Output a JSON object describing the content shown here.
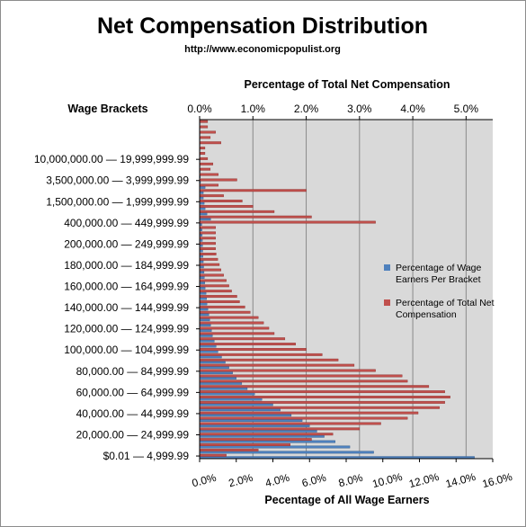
{
  "chart_data": {
    "type": "bar",
    "orientation": "horizontal",
    "title": "Net Compensation Distribution",
    "subtitle": "http://www.economicpopulist.org",
    "ylabel": "Wage Brackets",
    "x_top_label": "Percentage of Total Net Compensation",
    "x_bottom_label": "Pecentage of All Wage Earners",
    "x_top_ticks": [
      "0.0%",
      "1.0%",
      "2.0%",
      "3.0%",
      "4.0%",
      "5.0%"
    ],
    "x_top_lim": [
      0,
      5.5
    ],
    "x_bottom_ticks": [
      "0.0%",
      "2.0%",
      "4.0%",
      "6.0%",
      "8.0%",
      "10.0%",
      "12.0%",
      "14.0%",
      "16.0%"
    ],
    "x_bottom_lim": [
      0,
      16
    ],
    "grid": true,
    "legend_position": "right",
    "category_ticks": [
      "$0.01 — 4,999.99",
      "20,000.00 — 24,999.99",
      "40,000.00 — 44,999.99",
      "60,000.00 — 64,999.99",
      "80,000.00 — 84,999.99",
      "100,000.00 — 104,999.99",
      "120,000.00 — 124,999.99",
      "140,000.00 — 144,999.99",
      "160,000.00 — 164,999.99",
      "180,000.00 — 184,999.99",
      "200,000.00 — 249,999.99",
      "400,000.00 — 449,999.99",
      "1,500,000.00 — 1,999,999.99",
      "3,500,000.00 — 3,999,999.99",
      "10,000,000.00 — 19,999,999.99"
    ],
    "series": [
      {
        "name": "Percentage of Wage Earners Per Bracket",
        "color": "#4f81bd",
        "axis": "bottom",
        "values": [
          15.0,
          9.5,
          8.2,
          7.4,
          6.8,
          6.4,
          6.0,
          5.6,
          5.0,
          4.4,
          4.0,
          3.4,
          3.0,
          2.6,
          2.3,
          2.0,
          1.8,
          1.6,
          1.4,
          1.2,
          1.0,
          0.9,
          0.8,
          0.7,
          0.65,
          0.6,
          0.55,
          0.5,
          0.45,
          0.4,
          0.38,
          0.35,
          0.3,
          0.28,
          0.26,
          0.24,
          0.22,
          0.2,
          0.18,
          0.17,
          0.16,
          0.15,
          0.14,
          0.13,
          0.12,
          0.6,
          0.4,
          0.3,
          0.25,
          0.2,
          0.2,
          0.3,
          0.05,
          0.04,
          0.03,
          0.02,
          0.02,
          0.01,
          0.01,
          0.01,
          0.01,
          0.01,
          0.005,
          0.005
        ]
      },
      {
        "name": "Percentage of Total Net Compensation",
        "color": "#c0504d",
        "axis": "top",
        "values": [
          0.5,
          1.1,
          1.7,
          2.1,
          2.5,
          3.0,
          3.4,
          3.9,
          4.1,
          4.5,
          4.6,
          4.7,
          4.6,
          4.3,
          3.9,
          3.8,
          3.3,
          2.9,
          2.6,
          2.3,
          2.0,
          1.8,
          1.6,
          1.4,
          1.3,
          1.2,
          1.1,
          0.95,
          0.85,
          0.75,
          0.7,
          0.6,
          0.55,
          0.5,
          0.45,
          0.4,
          0.37,
          0.34,
          0.31,
          0.3,
          0.3,
          0.3,
          0.3,
          0.3,
          3.3,
          2.1,
          1.4,
          1.0,
          0.8,
          0.45,
          2.0,
          0.35,
          0.7,
          0.35,
          0.2,
          0.25,
          0.15,
          0.1,
          0.1,
          0.4,
          0.2,
          0.3,
          0.15,
          0.15
        ]
      }
    ]
  }
}
